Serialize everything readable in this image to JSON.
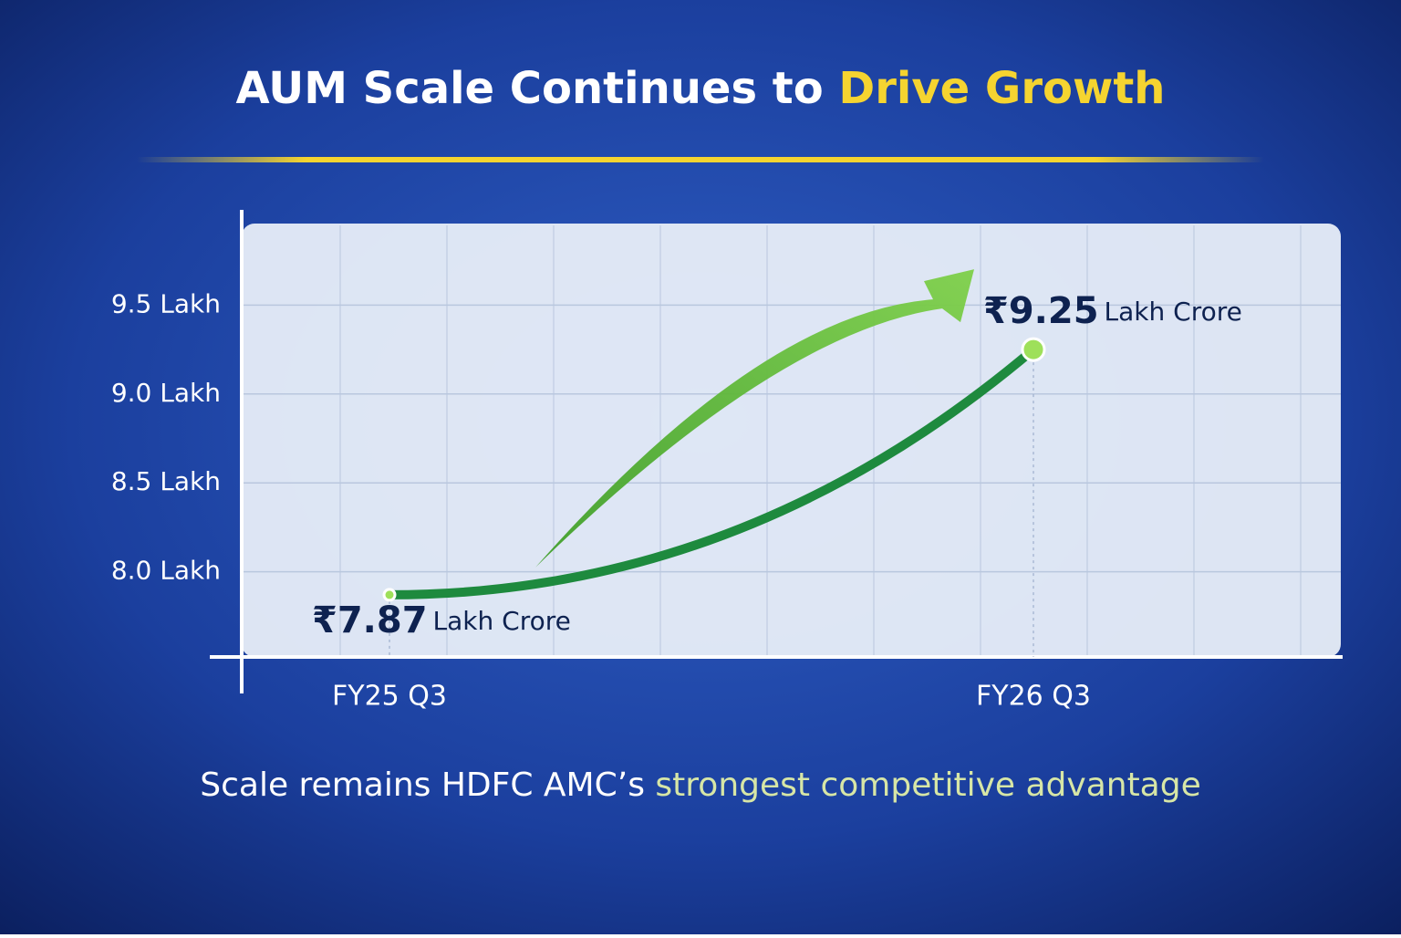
{
  "chart_data": {
    "type": "line",
    "title": {
      "text": "AUM Scale Continues to",
      "highlight": "Drive Growth"
    },
    "subtitle": {
      "text": "Scale remains HDFC AMC’s",
      "highlight": "strongest competitive advantage"
    },
    "categories": [
      "FY25 Q3",
      "FY26 Q3"
    ],
    "values": [
      7.87,
      9.25
    ],
    "value_labels": [
      "₹7.87",
      "₹9.25"
    ],
    "value_unit": "Lakh Crore",
    "color": "#1e8a3e",
    "ylim": [
      7.5,
      10
    ],
    "yticks": [
      {
        "value": 8.0,
        "label": "8.0 Lakh"
      },
      {
        "value": 8.5,
        "label": "8.5 Lakh"
      },
      {
        "value": 9.0,
        "label": "9.0 Lakh"
      },
      {
        "value": 9.5,
        "label": "9.5 Lakh"
      }
    ],
    "grid": true
  }
}
